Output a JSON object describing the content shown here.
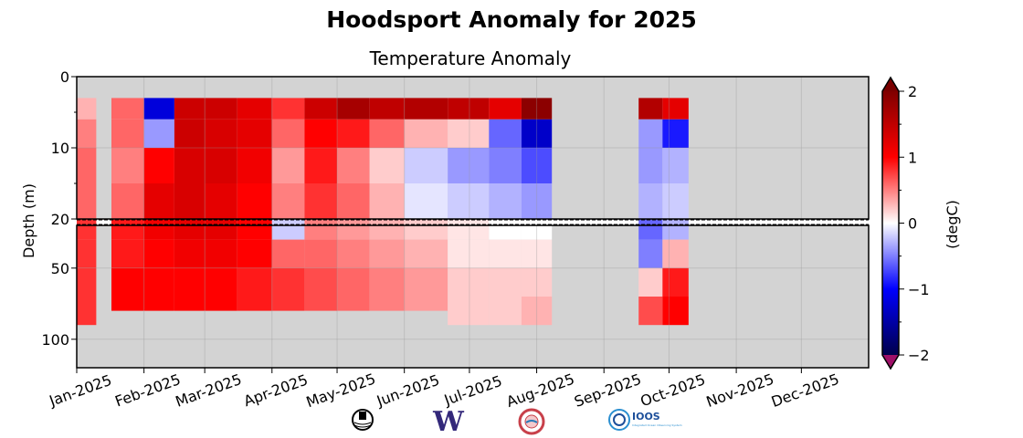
{
  "chart_data": {
    "type": "heatmap",
    "title": "Hoodsport Anomaly for 2025",
    "subtitle": "Temperature Anomaly",
    "ylabel": "Depth (m)",
    "colorbar_label": "(degC)",
    "colorbar_ticks": [
      "2",
      "1",
      "0",
      "−1",
      "−2"
    ],
    "colorbar_tick_values": [
      2,
      1,
      0,
      -1,
      -2
    ],
    "clim": [
      -2,
      2
    ],
    "colormap": {
      "low": "#00004c",
      "mid_low": "#0000ff",
      "zero": "#ffffff",
      "mid_high": "#ff0000",
      "high": "#800000",
      "over": "#7a0000",
      "under": "#9e1068"
    },
    "missing_color": "#d3d3d3",
    "upper_ylim": [
      20,
      0
    ],
    "lower_ylim": [
      120,
      20
    ],
    "upper_yticks": [
      {
        "v": 0,
        "label": "0"
      },
      {
        "v": 10,
        "label": "10"
      },
      {
        "v": 20,
        "label": "20"
      }
    ],
    "lower_yticks": [
      {
        "v": 50,
        "label": "50"
      },
      {
        "v": 100,
        "label": "100"
      }
    ],
    "xlim_days": [
      0,
      365
    ],
    "xticks": [
      {
        "day": 0,
        "label": "Jan-2025"
      },
      {
        "day": 31,
        "label": "Feb-2025"
      },
      {
        "day": 59,
        "label": "Mar-2025"
      },
      {
        "day": 90,
        "label": "Apr-2025"
      },
      {
        "day": 120,
        "label": "May-2025"
      },
      {
        "day": 151,
        "label": "Jun-2025"
      },
      {
        "day": 181,
        "label": "Jul-2025"
      },
      {
        "day": 212,
        "label": "Aug-2025"
      },
      {
        "day": 243,
        "label": "Sep-2025"
      },
      {
        "day": 273,
        "label": "Oct-2025"
      },
      {
        "day": 304,
        "label": "Nov-2025"
      },
      {
        "day": 334,
        "label": "Dec-2025"
      }
    ],
    "depth_bands": [
      [
        3,
        6
      ],
      [
        6,
        10
      ],
      [
        10,
        15
      ],
      [
        15,
        20
      ],
      [
        20,
        30
      ],
      [
        30,
        50
      ],
      [
        50,
        70
      ],
      [
        70,
        90
      ]
    ],
    "columns": [
      {
        "start": 0,
        "end": 9,
        "max_depth": 90,
        "values": [
          0.3,
          0.5,
          0.6,
          0.6,
          0.8,
          0.8,
          0.8,
          0.8
        ]
      },
      {
        "start": 16,
        "end": 31,
        "max_depth": 80,
        "values": [
          0.6,
          0.6,
          0.5,
          0.6,
          0.9,
          0.9,
          1.0,
          1.0
        ]
      },
      {
        "start": 31,
        "end": 45,
        "max_depth": 80,
        "values": [
          -1.2,
          -0.4,
          1.0,
          1.2,
          1.1,
          1.0,
          1.0,
          1.0
        ]
      },
      {
        "start": 45,
        "end": 59,
        "max_depth": 80,
        "values": [
          1.4,
          1.4,
          1.3,
          1.3,
          1.2,
          1.1,
          1.0,
          1.0
        ]
      },
      {
        "start": 59,
        "end": 74,
        "max_depth": 80,
        "values": [
          1.4,
          1.3,
          1.3,
          1.2,
          1.2,
          1.1,
          1.0,
          1.0
        ]
      },
      {
        "start": 74,
        "end": 90,
        "max_depth": 80,
        "values": [
          1.2,
          1.2,
          1.1,
          1.0,
          1.0,
          1.0,
          0.9,
          0.9
        ]
      },
      {
        "start": 90,
        "end": 105,
        "max_depth": 80,
        "values": [
          0.8,
          0.6,
          0.4,
          0.5,
          -0.2,
          0.6,
          0.8,
          0.8
        ]
      },
      {
        "start": 105,
        "end": 120,
        "max_depth": 80,
        "values": [
          1.4,
          1.0,
          0.9,
          0.8,
          0.5,
          0.6,
          0.7,
          0.7
        ]
      },
      {
        "start": 120,
        "end": 135,
        "max_depth": 80,
        "values": [
          1.7,
          0.9,
          0.5,
          0.6,
          0.4,
          0.5,
          0.6,
          0.6
        ]
      },
      {
        "start": 135,
        "end": 151,
        "max_depth": 80,
        "values": [
          1.5,
          0.6,
          0.2,
          0.3,
          0.3,
          0.4,
          0.5,
          0.5
        ]
      },
      {
        "start": 151,
        "end": 171,
        "max_depth": 80,
        "values": [
          1.6,
          0.3,
          -0.2,
          -0.1,
          0.2,
          0.3,
          0.4,
          0.4
        ]
      },
      {
        "start": 171,
        "end": 190,
        "max_depth": 90,
        "values": [
          1.5,
          0.2,
          -0.4,
          -0.2,
          0.1,
          0.1,
          0.2,
          0.2
        ]
      },
      {
        "start": 190,
        "end": 205,
        "max_depth": 90,
        "values": [
          1.2,
          -0.6,
          -0.5,
          -0.3,
          0.0,
          0.1,
          0.2,
          0.2
        ]
      },
      {
        "start": 205,
        "end": 219,
        "max_depth": 90,
        "values": [
          1.9,
          -1.3,
          -0.7,
          -0.4,
          0.0,
          0.1,
          0.2,
          0.3
        ]
      },
      {
        "start": 259,
        "end": 270,
        "max_depth": 90,
        "values": [
          1.6,
          -0.4,
          -0.4,
          -0.3,
          -0.6,
          -0.5,
          0.2,
          0.7
        ]
      },
      {
        "start": 270,
        "end": 282,
        "max_depth": 90,
        "values": [
          1.2,
          -0.9,
          -0.3,
          -0.2,
          -0.3,
          0.3,
          0.9,
          1.0
        ]
      }
    ]
  },
  "logos": [
    "NANOOS buoy logo",
    "UW",
    "Tribal logo",
    "IOOS"
  ],
  "logo_text": {
    "ioos": "IOOS",
    "ioos_sub": "Integrated Ocean Observing System"
  }
}
